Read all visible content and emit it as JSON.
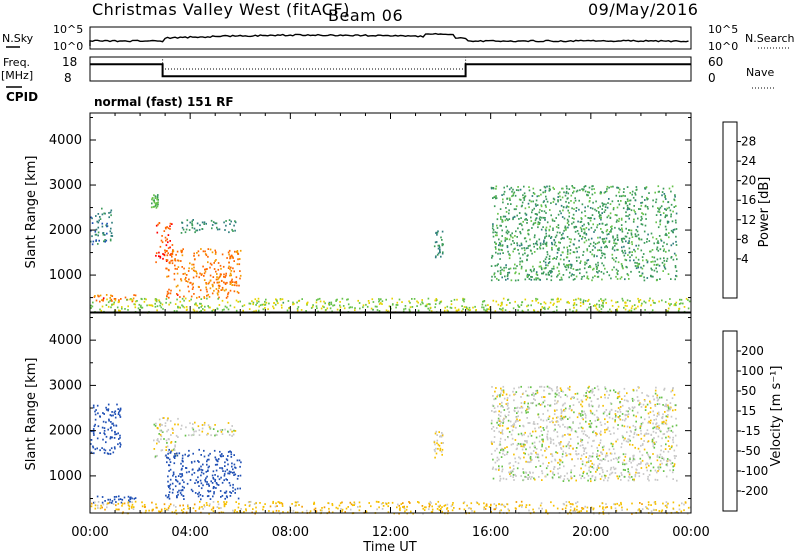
{
  "header": {
    "title": "Christmas Valley West (fitACF)",
    "beam": "Beam 06",
    "date": "09/May/2016"
  },
  "top_panel": {
    "left_label": "N.Sky",
    "left_ticks": [
      "10^5",
      "10^0"
    ],
    "right_label": "N.Search",
    "right_ticks": [
      "10^5",
      "10^0"
    ]
  },
  "freq_panel": {
    "left_label_line1": "Freq.",
    "left_label_line2": "[MHz]",
    "left_ticks": [
      "18",
      "8"
    ],
    "right_label": "Nave",
    "right_ticks": [
      "60",
      "0"
    ]
  },
  "cpid": {
    "label": "CPID",
    "mode": "normal (fast) 151 RF"
  },
  "power_panel": {
    "y_label": "Slant Range [km]",
    "y_ticks": [
      "4000",
      "3000",
      "2000",
      "1000"
    ],
    "colorbar_label": "Power [dB]",
    "colorbar_ticks": [
      "28",
      "24",
      "20",
      "16",
      "12",
      "8",
      "4"
    ],
    "colors": [
      "#0000ff",
      "#1f4fb4",
      "#2e7d7d",
      "#3c9b5a",
      "#66c24a",
      "#e5d400",
      "#f39c00",
      "#ff6600",
      "#ff0000"
    ]
  },
  "velocity_panel": {
    "y_label": "Slant Range [km]",
    "y_ticks": [
      "4000",
      "3000",
      "2000",
      "1000"
    ],
    "colorbar_label": "Velocity [m s⁻¹]",
    "colorbar_ticks": [
      "200",
      "100",
      "50",
      "15",
      "-15",
      "-50",
      "-100",
      "-200"
    ],
    "colors": [
      "#1f4fb4",
      "#2e7d7d",
      "#3c9b5a",
      "#66c24a",
      "#c8c8c8",
      "#f6c000",
      "#f39c00",
      "#ff6600",
      "#ff0000"
    ]
  },
  "x_axis": {
    "ticks": [
      "00:00",
      "04:00",
      "08:00",
      "12:00",
      "16:00",
      "20:00",
      "00:00"
    ],
    "label": "Time UT"
  },
  "chart_data": {
    "type": "heatmap",
    "x_range_hours": [
      0,
      24
    ],
    "y_range_km": [
      180,
      4600
    ],
    "panels": [
      {
        "quantity": "Power [dB]",
        "color_range": [
          0,
          30
        ],
        "regions": [
          {
            "t0": 0.0,
            "t1": 0.9,
            "r0": 1700,
            "r1": 2500,
            "value": 8
          },
          {
            "t0": 0.1,
            "t1": 1.8,
            "r0": 420,
            "r1": 580,
            "value": 24
          },
          {
            "t0": 2.4,
            "t1": 2.7,
            "r0": 2500,
            "r1": 2800,
            "value": 14
          },
          {
            "t0": 2.6,
            "t1": 3.3,
            "r0": 1300,
            "r1": 2200,
            "value": 26
          },
          {
            "t0": 3.0,
            "t1": 6.0,
            "r0": 500,
            "r1": 1600,
            "value": 24
          },
          {
            "t0": 3.6,
            "t1": 5.8,
            "r0": 1950,
            "r1": 2250,
            "value": 10
          },
          {
            "t0": 0.0,
            "t1": 24.0,
            "r0": 180,
            "r1": 500,
            "value": 16
          },
          {
            "t0": 13.7,
            "t1": 14.1,
            "r0": 1400,
            "r1": 2000,
            "value": 10
          },
          {
            "t0": 16.0,
            "t1": 23.4,
            "r0": 900,
            "r1": 3000,
            "value": 12
          }
        ]
      },
      {
        "quantity": "Velocity [m s^-1]",
        "color_range": [
          -200,
          200
        ],
        "regions": [
          {
            "t0": 0.0,
            "t1": 1.2,
            "r0": 1500,
            "r1": 2600,
            "value": -200
          },
          {
            "t0": 0.1,
            "t1": 1.8,
            "r0": 420,
            "r1": 580,
            "value": -200
          },
          {
            "t0": 2.5,
            "t1": 3.5,
            "r0": 1400,
            "r1": 2300,
            "value": 0
          },
          {
            "t0": 3.0,
            "t1": 6.0,
            "r0": 500,
            "r1": 1600,
            "value": -200
          },
          {
            "t0": 3.6,
            "t1": 5.8,
            "r0": 1900,
            "r1": 2200,
            "value": 0
          },
          {
            "t0": 0.0,
            "t1": 24.0,
            "r0": 180,
            "r1": 450,
            "value": 40
          },
          {
            "t0": 13.7,
            "t1": 14.1,
            "r0": 1400,
            "r1": 2000,
            "value": 30
          },
          {
            "t0": 16.0,
            "t1": 23.4,
            "r0": 900,
            "r1": 3000,
            "value": 0
          }
        ]
      }
    ],
    "frequency_mhz": [
      {
        "t0": 0,
        "t1": 2.9,
        "value": 15
      },
      {
        "t0": 2.9,
        "t1": 15.0,
        "value": 10
      },
      {
        "t0": 15.0,
        "t1": 24,
        "value": 15
      }
    ],
    "nave": [
      {
        "t0": 0,
        "t1": 2.9,
        "value": 60
      },
      {
        "t0": 2.9,
        "t1": 15.0,
        "value": 30
      },
      {
        "t0": 15.0,
        "t1": 24,
        "value": 60
      }
    ]
  }
}
